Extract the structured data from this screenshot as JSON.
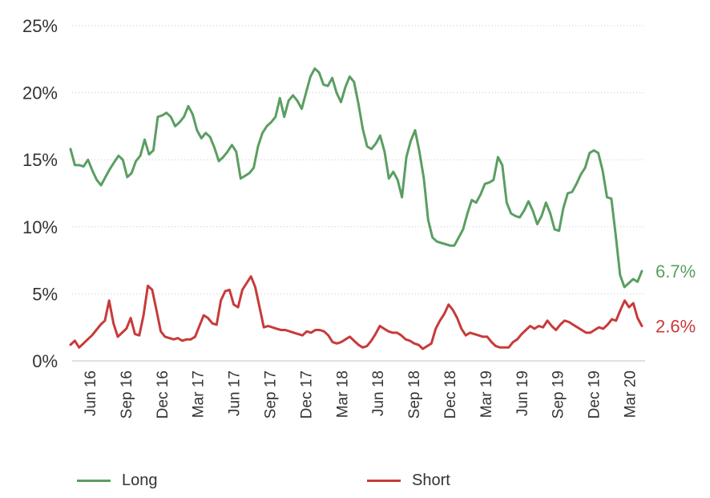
{
  "chart_data": {
    "type": "line",
    "y_ticks": [
      "0%",
      "5%",
      "10%",
      "15%",
      "20%",
      "25%"
    ],
    "ylim": [
      0,
      25
    ],
    "y_unit": "%",
    "grid": "horizontal dotted",
    "x_ticks": [
      "Jun 16",
      "Sep 16",
      "Dec 16",
      "Mar 17",
      "Jun 17",
      "Sep 17",
      "Dec 17",
      "Mar 18",
      "Jun 18",
      "Sep 18",
      "Dec 18",
      "Mar 19",
      "Jun 19",
      "Sep 19",
      "Dec 19",
      "Mar 20"
    ],
    "legend_position": "bottom",
    "series": [
      {
        "name": "Long",
        "color": "#5a9e62",
        "end_label": "6.7%",
        "values": [
          15.8,
          14.6,
          14.6,
          14.5,
          15.0,
          14.2,
          13.5,
          13.1,
          13.7,
          14.3,
          14.8,
          15.3,
          15.0,
          13.7,
          14.0,
          14.9,
          15.3,
          16.5,
          15.4,
          15.7,
          18.2,
          18.3,
          18.5,
          18.2,
          17.5,
          17.8,
          18.2,
          19.0,
          18.4,
          17.2,
          16.6,
          17.0,
          16.7,
          15.9,
          14.9,
          15.2,
          15.6,
          16.1,
          15.6,
          13.6,
          13.8,
          14.0,
          14.4,
          16.0,
          17.0,
          17.5,
          17.8,
          18.2,
          19.6,
          18.2,
          19.4,
          19.8,
          19.4,
          18.8,
          20.0,
          21.2,
          21.8,
          21.5,
          20.6,
          20.5,
          21.1,
          20.0,
          19.3,
          20.4,
          21.2,
          20.8,
          19.2,
          17.3,
          16.0,
          15.8,
          16.2,
          16.8,
          15.6,
          13.6,
          14.1,
          13.5,
          12.2,
          15.2,
          16.4,
          17.2,
          15.6,
          13.6,
          10.5,
          9.2,
          8.9,
          8.8,
          8.7,
          8.6,
          8.6,
          9.2,
          9.8,
          11.0,
          12.0,
          11.8,
          12.4,
          13.2,
          13.3,
          13.5,
          15.2,
          14.6,
          11.8,
          11.0,
          10.8,
          10.7,
          11.2,
          11.9,
          11.2,
          10.2,
          10.8,
          11.8,
          11.0,
          9.8,
          9.7,
          11.4,
          12.5,
          12.6,
          13.2,
          13.9,
          14.4,
          15.5,
          15.7,
          15.5,
          14.2,
          12.2,
          12.1,
          9.4,
          6.4,
          5.5,
          5.8,
          6.1,
          5.9,
          6.7
        ]
      },
      {
        "name": "Short",
        "color": "#c83a3a",
        "end_label": "2.6%",
        "values": [
          1.2,
          1.5,
          1.0,
          1.3,
          1.6,
          1.9,
          2.3,
          2.7,
          3.0,
          4.5,
          2.8,
          1.8,
          2.1,
          2.4,
          3.2,
          2.0,
          1.9,
          3.4,
          5.6,
          5.3,
          3.8,
          2.2,
          1.8,
          1.7,
          1.6,
          1.7,
          1.5,
          1.6,
          1.6,
          1.8,
          2.6,
          3.4,
          3.2,
          2.8,
          2.7,
          4.5,
          5.2,
          5.3,
          4.2,
          4.0,
          5.3,
          5.8,
          6.3,
          5.5,
          4.0,
          2.5,
          2.6,
          2.5,
          2.4,
          2.3,
          2.3,
          2.2,
          2.1,
          2.0,
          1.9,
          2.2,
          2.1,
          2.3,
          2.3,
          2.2,
          1.9,
          1.4,
          1.3,
          1.4,
          1.6,
          1.8,
          1.5,
          1.2,
          1.0,
          1.1,
          1.5,
          2.0,
          2.6,
          2.4,
          2.2,
          2.1,
          2.1,
          1.9,
          1.6,
          1.5,
          1.3,
          1.2,
          0.9,
          1.1,
          1.3,
          2.4,
          3.0,
          3.5,
          4.2,
          3.8,
          3.2,
          2.4,
          1.9,
          2.1,
          2.0,
          1.9,
          1.8,
          1.8,
          1.4,
          1.1,
          1.0,
          1.0,
          1.0,
          1.4,
          1.6,
          2.0,
          2.3,
          2.6,
          2.4,
          2.6,
          2.5,
          3.0,
          2.6,
          2.3,
          2.7,
          3.0,
          2.9,
          2.7,
          2.5,
          2.3,
          2.1,
          2.1,
          2.3,
          2.5,
          2.4,
          2.7,
          3.1,
          3.0,
          3.8,
          4.5,
          4.0,
          4.3,
          3.2,
          2.6
        ]
      }
    ]
  }
}
